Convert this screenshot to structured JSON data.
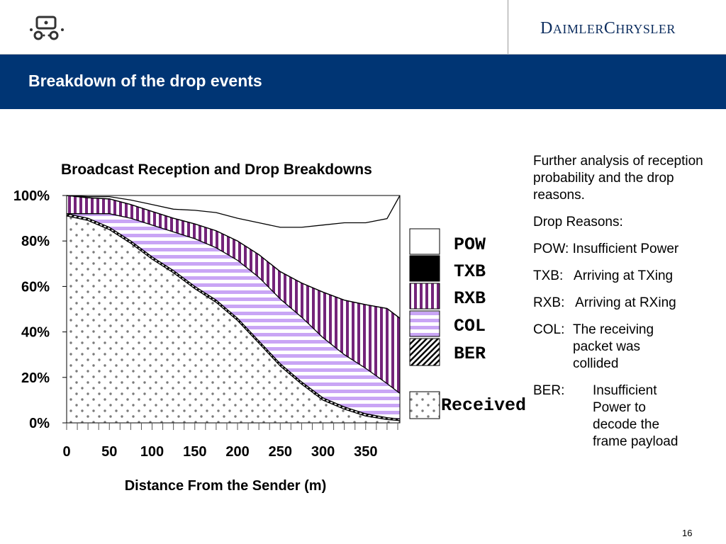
{
  "header": {
    "brand_logo_text": "DAIMLERCHRYSLER",
    "brand_word_main": "D",
    "brand_word_small": "AIMLER",
    "brand_word_main2": "C",
    "brand_word_small2": "HRYSLER"
  },
  "slide": {
    "title": "Breakdown of the drop events",
    "page_number": "16"
  },
  "notes": {
    "intro": "Further analysis of reception probability and the drop reasons.",
    "heading": "Drop Reasons:",
    "items": [
      {
        "code": "POW:",
        "text": "Insufficient Power"
      },
      {
        "code": "TXB:",
        "text": "Arriving at TXing"
      },
      {
        "code": "RXB:",
        "text": "Arriving at RXing"
      },
      {
        "code": "COL:",
        "text": "The receiving packet was collided"
      },
      {
        "code": "BER:",
        "text": "Insufficient Power to decode the frame payload"
      }
    ]
  },
  "chart_data": {
    "type": "area",
    "stacked": true,
    "title": "Broadcast Reception and Drop Breakdowns",
    "xlabel": "Distance From the Sender (m)",
    "ylabel": "",
    "x_tick_labels": [
      "0",
      "50",
      "100",
      "150",
      "200",
      "250",
      "300",
      "350"
    ],
    "y_tick_labels": [
      "0%",
      "20%",
      "40%",
      "60%",
      "80%",
      "100%"
    ],
    "xlim": [
      0,
      390
    ],
    "ylim": [
      0,
      100
    ],
    "x": [
      0,
      25,
      50,
      75,
      100,
      125,
      150,
      175,
      200,
      225,
      250,
      275,
      300,
      325,
      350,
      375,
      390
    ],
    "series": [
      {
        "name": "Received",
        "pattern": "dots",
        "values": [
          91,
          89,
          85,
          79,
          72,
          66,
          59,
          53,
          45,
          35,
          25,
          17,
          10,
          6,
          3,
          1.5,
          1
        ]
      },
      {
        "name": "BER",
        "pattern": "diagonal",
        "values": [
          1,
          1,
          1,
          1,
          1,
          1,
          1,
          1,
          1,
          1,
          1,
          1,
          1,
          1,
          1,
          0.8,
          0.7
        ]
      },
      {
        "name": "COL",
        "pattern": "hstripes",
        "values": [
          0,
          2,
          6,
          10,
          14,
          17,
          21,
          23,
          25.5,
          28,
          28.5,
          28.5,
          26.5,
          23,
          20,
          15,
          11.3
        ]
      },
      {
        "name": "RXB",
        "pattern": "vstripes",
        "values": [
          8,
          7,
          6.5,
          6,
          6,
          6,
          6.5,
          7.5,
          8.5,
          10,
          12,
          15,
          20,
          24,
          28,
          33,
          33
        ]
      },
      {
        "name": "TXB",
        "pattern": "solid-black",
        "values": [
          0,
          0,
          0,
          0,
          0,
          0,
          0,
          0,
          0,
          0,
          0,
          0,
          0,
          0,
          0,
          0,
          0
        ]
      },
      {
        "name": "POW",
        "pattern": "white",
        "values": [
          0,
          0.5,
          1,
          2,
          3,
          4,
          6,
          8,
          10,
          14,
          19.5,
          24.5,
          29.5,
          34,
          36,
          39.5,
          54
        ]
      }
    ],
    "legend_order": [
      "POW",
      "TXB",
      "RXB",
      "COL",
      "BER",
      "Received"
    ],
    "colors": {
      "purple": "#74247a",
      "lavender": "#c9a5f5",
      "black": "#000000",
      "dots": "#7b7b7b"
    },
    "legend_position": "right"
  }
}
